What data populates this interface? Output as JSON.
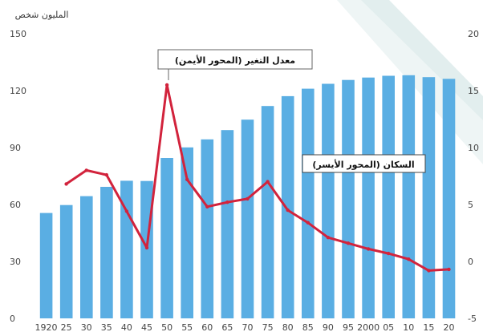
{
  "chart_data": {
    "type": "bar+line",
    "title": "",
    "left_axis": {
      "label": "المليون شخص",
      "ticks": [
        "0",
        "30",
        "60",
        "90",
        "120",
        "150"
      ],
      "ylim": [
        0,
        150
      ]
    },
    "right_axis": {
      "label": "",
      "ticks": [
        "-5",
        "0",
        "5",
        "10",
        "15",
        "20"
      ],
      "ylim": [
        -5,
        20
      ]
    },
    "x_tick_labels": [
      "1920",
      "25",
      "30",
      "35",
      "40",
      "45",
      "50",
      "55",
      "60",
      "65",
      "70",
      "75",
      "80",
      "85",
      "90",
      "95",
      "2000",
      "05",
      "10",
      "15",
      "20"
    ],
    "bars": {
      "name": "السكان (المحور الأيسر)",
      "values": [
        55.5,
        59.7,
        64.4,
        69.3,
        72.5,
        72.4,
        84.5,
        90.1,
        94.3,
        99.2,
        104.7,
        111.9,
        117.1,
        121.0,
        123.6,
        125.6,
        126.9,
        127.8,
        128.1,
        127.1,
        126.2
      ]
    },
    "line": {
      "name": "معدل التغير (المحور الأيمن)",
      "values": [
        null,
        6.8,
        8.0,
        7.6,
        4.4,
        1.2,
        15.5,
        7.2,
        4.8,
        5.2,
        5.5,
        7.0,
        4.5,
        3.4,
        2.1,
        1.6,
        1.1,
        0.7,
        0.2,
        -0.8,
        -0.7
      ]
    },
    "grid": false,
    "colors": {
      "bars": "#5aaee3",
      "line": "#d2233c"
    }
  }
}
